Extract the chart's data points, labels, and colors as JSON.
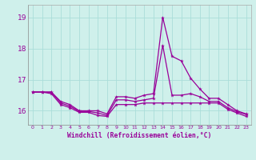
{
  "xlabel": "Windchill (Refroidissement éolien,°C)",
  "background_color": "#cff0eb",
  "grid_color": "#aaddda",
  "line_color": "#990099",
  "x": [
    0,
    1,
    2,
    3,
    4,
    5,
    6,
    7,
    8,
    9,
    10,
    11,
    12,
    13,
    14,
    15,
    16,
    17,
    18,
    19,
    20,
    21,
    22,
    23
  ],
  "line1": [
    16.6,
    16.6,
    16.6,
    16.3,
    16.2,
    16.0,
    16.0,
    16.0,
    15.9,
    16.45,
    16.45,
    16.4,
    16.5,
    16.55,
    19.0,
    17.75,
    17.6,
    17.05,
    16.7,
    16.4,
    16.4,
    16.2,
    16.0,
    15.9
  ],
  "line2": [
    16.6,
    16.6,
    16.6,
    16.25,
    16.15,
    15.98,
    15.98,
    15.93,
    15.85,
    16.35,
    16.35,
    16.3,
    16.35,
    16.4,
    18.1,
    16.5,
    16.5,
    16.55,
    16.45,
    16.3,
    16.3,
    16.1,
    15.97,
    15.88
  ],
  "line3": [
    16.6,
    16.6,
    16.55,
    16.2,
    16.1,
    15.95,
    15.95,
    15.85,
    15.82,
    16.2,
    16.2,
    16.2,
    16.25,
    16.25,
    16.25,
    16.25,
    16.25,
    16.25,
    16.25,
    16.25,
    16.25,
    16.05,
    15.93,
    15.82
  ],
  "ylim": [
    15.55,
    19.4
  ],
  "yticks": [
    16,
    17,
    18,
    19
  ],
  "xlim": [
    -0.5,
    23.5
  ]
}
